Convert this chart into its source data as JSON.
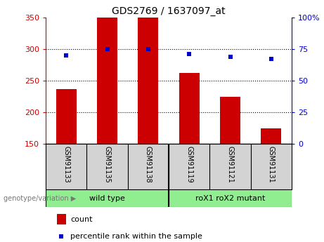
{
  "title": "GDS2769 / 1637097_at",
  "samples": [
    "GSM91133",
    "GSM91135",
    "GSM91138",
    "GSM91119",
    "GSM91121",
    "GSM91131"
  ],
  "counts": [
    237,
    350,
    350,
    262,
    224,
    175
  ],
  "percentile_ranks": [
    70,
    75,
    75,
    71,
    69,
    67
  ],
  "ymin": 150,
  "ymax": 350,
  "yticks": [
    150,
    200,
    250,
    300,
    350
  ],
  "right_yticks": [
    0,
    25,
    50,
    75,
    100
  ],
  "right_ytick_labels": [
    "0",
    "25",
    "50",
    "75",
    "100%"
  ],
  "bar_color": "#CC0000",
  "dot_color": "#0000CC",
  "bar_width": 0.5,
  "legend_count_label": "count",
  "legend_pct_label": "percentile rank within the sample",
  "genotype_label": "genotype/variation",
  "group_label_color": "#777777",
  "sample_bg_color": "#d3d3d3",
  "group1_color": "#90EE90",
  "group1_label": "wild type",
  "group1_samples": [
    0,
    1,
    2
  ],
  "group2_color": "#90EE90",
  "group2_label": "roX1 roX2 mutant",
  "group2_samples": [
    3,
    4,
    5
  ]
}
